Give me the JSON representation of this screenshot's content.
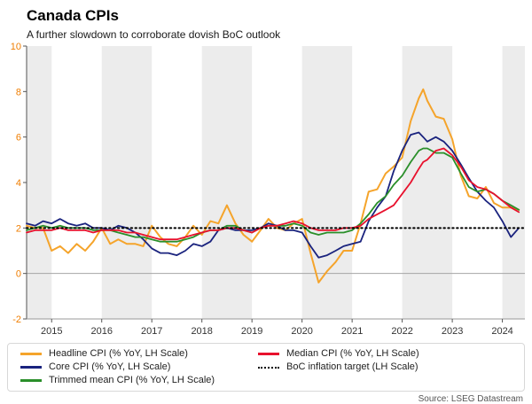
{
  "header": {
    "title": "Canada CPIs",
    "subtitle": "A further slowdown to corroborate dovish BoC outlook"
  },
  "source": "Source: LSEG Datastream",
  "chart_data": {
    "type": "line",
    "title": "Canada CPIs",
    "subtitle": "A further slowdown to corroborate dovish BoC outlook",
    "xlabel": "",
    "ylabel": "",
    "x_range": [
      2014.5,
      2024.45
    ],
    "ylim": [
      -2,
      10
    ],
    "y_ticks": [
      -2,
      0,
      2,
      4,
      6,
      8,
      10
    ],
    "x_ticks": [
      2015,
      2016,
      2017,
      2018,
      2019,
      2020,
      2021,
      2022,
      2023,
      2024
    ],
    "grid": "zero-line-only",
    "legend_position": "bottom",
    "band_color": "#ececec",
    "shaded_year_bands": [
      [
        2014.5,
        2015
      ],
      [
        2016,
        2017
      ],
      [
        2018,
        2019
      ],
      [
        2020,
        2021
      ],
      [
        2022,
        2023
      ],
      [
        2024,
        2024.45
      ]
    ],
    "y_axis_label_color": "#ef7d00",
    "x_axis_label_color": "#333333",
    "x": [
      2014.5,
      2014.67,
      2014.83,
      2015,
      2015.17,
      2015.33,
      2015.5,
      2015.67,
      2015.83,
      2016,
      2016.17,
      2016.33,
      2016.5,
      2016.67,
      2016.83,
      2017,
      2017.17,
      2017.33,
      2017.5,
      2017.67,
      2017.83,
      2018,
      2018.17,
      2018.33,
      2018.5,
      2018.67,
      2018.83,
      2019,
      2019.17,
      2019.33,
      2019.5,
      2019.67,
      2019.83,
      2020,
      2020.17,
      2020.33,
      2020.5,
      2020.67,
      2020.83,
      2021,
      2021.17,
      2021.33,
      2021.5,
      2021.67,
      2021.83,
      2022,
      2022.17,
      2022.33,
      2022.42,
      2022.5,
      2022.67,
      2022.83,
      2023,
      2023.17,
      2023.33,
      2023.5,
      2023.67,
      2023.83,
      2024,
      2024.17,
      2024.33
    ],
    "series": [
      {
        "name": "Headline CPI (% YoY, LH Scale)",
        "color": "#f5a42b",
        "values": [
          2.1,
          2.0,
          2.0,
          1.0,
          1.2,
          0.9,
          1.3,
          1.0,
          1.4,
          2.0,
          1.3,
          1.5,
          1.3,
          1.3,
          1.2,
          2.1,
          1.6,
          1.3,
          1.2,
          1.6,
          2.1,
          1.7,
          2.3,
          2.2,
          3.0,
          2.2,
          1.7,
          1.4,
          1.9,
          2.4,
          2.0,
          1.9,
          2.2,
          2.4,
          0.9,
          -0.4,
          0.1,
          0.5,
          1.0,
          1.0,
          2.2,
          3.6,
          3.7,
          4.4,
          4.7,
          5.1,
          6.7,
          7.7,
          8.1,
          7.6,
          6.9,
          6.8,
          5.9,
          4.3,
          3.4,
          3.3,
          3.8,
          3.1,
          2.9,
          2.9,
          2.8
        ]
      },
      {
        "name": "Core CPI (% YoY, LH Scale)",
        "color": "#1a237e",
        "values": [
          2.2,
          2.1,
          2.3,
          2.2,
          2.4,
          2.2,
          2.1,
          2.2,
          2.0,
          2.0,
          1.9,
          2.1,
          2.0,
          1.8,
          1.5,
          1.1,
          0.9,
          0.9,
          0.8,
          1.0,
          1.3,
          1.2,
          1.4,
          1.9,
          2.0,
          1.9,
          1.9,
          1.9,
          2.0,
          2.2,
          2.1,
          1.9,
          1.9,
          1.8,
          1.2,
          0.7,
          0.8,
          1.0,
          1.2,
          1.3,
          1.4,
          2.3,
          2.9,
          3.4,
          4.5,
          5.4,
          6.1,
          6.2,
          6.0,
          5.8,
          6.0,
          5.8,
          5.4,
          4.8,
          4.2,
          3.6,
          3.2,
          2.9,
          2.3,
          1.6,
          2.0
        ]
      },
      {
        "name": "Trimmed mean CPI (% YoY, LH Scale)",
        "color": "#2a8f2a",
        "values": [
          1.9,
          2.0,
          2.1,
          2.0,
          2.1,
          2.0,
          2.0,
          2.0,
          1.9,
          1.9,
          1.9,
          1.8,
          1.7,
          1.6,
          1.6,
          1.5,
          1.4,
          1.4,
          1.4,
          1.5,
          1.6,
          1.8,
          1.9,
          1.9,
          2.1,
          2.1,
          1.9,
          1.8,
          2.0,
          2.1,
          2.1,
          2.1,
          2.2,
          2.1,
          1.8,
          1.7,
          1.8,
          1.8,
          1.8,
          1.9,
          2.2,
          2.6,
          3.1,
          3.4,
          3.9,
          4.3,
          4.9,
          5.4,
          5.5,
          5.5,
          5.3,
          5.3,
          5.1,
          4.4,
          3.8,
          3.6,
          3.7,
          3.5,
          3.2,
          3.0,
          2.8
        ]
      },
      {
        "name": "Median CPI (% YoY, LH Scale)",
        "color": "#e8112d",
        "values": [
          1.8,
          1.9,
          1.9,
          1.9,
          2.0,
          1.9,
          1.9,
          1.9,
          1.8,
          1.9,
          1.9,
          1.9,
          1.8,
          1.8,
          1.7,
          1.6,
          1.5,
          1.5,
          1.5,
          1.6,
          1.7,
          1.8,
          1.9,
          1.9,
          2.0,
          2.0,
          1.9,
          1.8,
          2.0,
          2.1,
          2.1,
          2.2,
          2.3,
          2.2,
          2.0,
          1.9,
          1.9,
          1.9,
          2.0,
          2.0,
          2.1,
          2.4,
          2.6,
          2.8,
          3.0,
          3.5,
          4.0,
          4.6,
          4.9,
          5.0,
          5.4,
          5.5,
          5.2,
          4.7,
          4.1,
          3.8,
          3.7,
          3.5,
          3.2,
          2.9,
          2.7
        ]
      }
    ],
    "reference_line": {
      "label": "BoC inflation target (LH Scale)",
      "value": 2,
      "color": "#000000",
      "style": "dotted"
    }
  }
}
